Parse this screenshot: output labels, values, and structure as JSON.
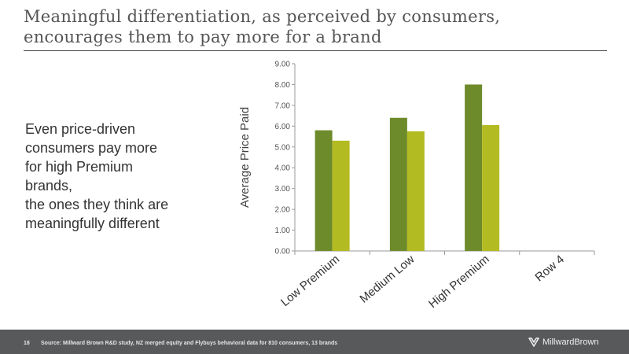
{
  "slide": {
    "title_line1": "Meaningful differentiation, as perceived by consumers,",
    "title_line2": "encourages them to pay more for a brand",
    "body_lines": [
      "Even price-driven",
      "consumers pay more",
      "for high Premium",
      "brands,",
      "the ones they think are",
      "meaningfully different"
    ]
  },
  "footer": {
    "page_number": "18",
    "source": "Source: Millward Brown R&D study, NZ merged equity and Flybuys behavioral data for 810 consumers, 13 brands",
    "logo_text": "MillwardBrown"
  },
  "colors": {
    "series1": "#6e8b2b",
    "series2": "#b3bb22",
    "footer_bg": "#58595b"
  },
  "chart_data": {
    "type": "bar",
    "categories": [
      "Low Premium",
      "Medium Low",
      "High Premium",
      "Row 4"
    ],
    "series": [
      {
        "values": [
          5.8,
          6.4,
          8.0,
          null
        ]
      },
      {
        "values": [
          5.3,
          5.75,
          6.05,
          null
        ]
      }
    ],
    "ylabel": "Average Price Paid",
    "ylim": [
      0,
      9
    ],
    "yticks": [
      "0.00",
      "1.00",
      "2.00",
      "3.00",
      "4.00",
      "5.00",
      "6.00",
      "7.00",
      "8.00",
      "9.00"
    ],
    "grid": false,
    "legend": "none"
  }
}
